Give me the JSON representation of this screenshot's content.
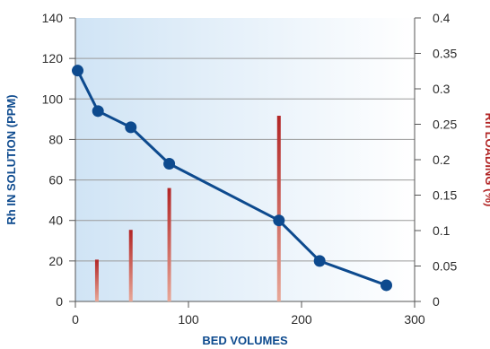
{
  "chart_data": {
    "type": "line",
    "title": "",
    "xlabel": "BED VOLUMES",
    "ylabel": "Rh IN SOLUTION (PPM)",
    "y2label": "Rh LOADING (%)",
    "xlim": [
      0,
      300
    ],
    "ylim": [
      0,
      140
    ],
    "y2lim": [
      0,
      0.4
    ],
    "x_ticks": [
      "0",
      "100",
      "200",
      "300"
    ],
    "y_ticks": [
      "0",
      "20",
      "40",
      "60",
      "80",
      "100",
      "120",
      "140"
    ],
    "y2_ticks": [
      "0",
      "0.05",
      "0.1",
      "0.15",
      "0.2",
      "0.25",
      "0.3",
      "0.35",
      "0.4"
    ],
    "grid": true,
    "series": [
      {
        "type": "line",
        "axis": "left",
        "color": "#0d4a8e",
        "x": [
          2,
          20,
          49,
          83,
          180,
          216,
          275
        ],
        "y": [
          114,
          94,
          86,
          68,
          40,
          20,
          8
        ]
      },
      {
        "type": "bar",
        "axis": "right",
        "color": "#b22525",
        "x": [
          19,
          49,
          83,
          180
        ],
        "y": [
          0.059,
          0.101,
          0.16,
          0.262
        ]
      }
    ],
    "colors": {
      "line": "#0d4a8e",
      "bar_top": "#b22525",
      "bar_bottom": "#e8a898",
      "left_axis_title": "#0d4a8e",
      "right_axis_title": "#b22525",
      "x_axis_title": "#0d4a8e",
      "background_left": "#d0e4f5",
      "background_right": "#ffffff"
    }
  }
}
